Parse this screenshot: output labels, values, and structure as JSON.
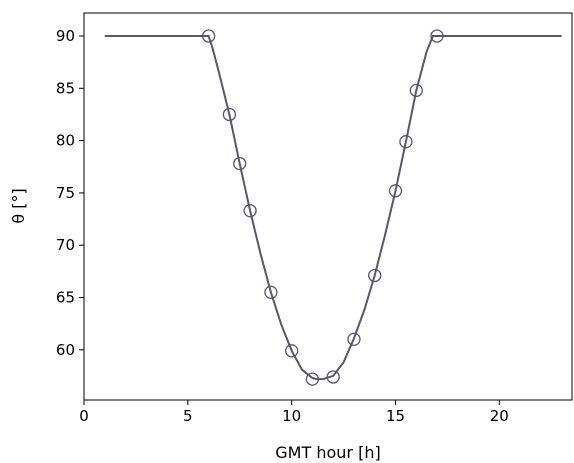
{
  "chart_data": {
    "type": "line",
    "xlabel": "GMT hour [h]",
    "ylabel": "θ [°]",
    "xlim": [
      0,
      23.5
    ],
    "ylim": [
      55.2,
      92.2
    ],
    "xticks": [
      0,
      5,
      10,
      15,
      20
    ],
    "yticks": [
      60,
      65,
      70,
      75,
      80,
      85,
      90
    ],
    "grid": false,
    "colors": {
      "line": "#56566e",
      "marker": "#56566e"
    },
    "series": [
      {
        "style": "line",
        "x": [
          1,
          6.0,
          6.2,
          6.5,
          7,
          7.5,
          8,
          8.5,
          9,
          9.5,
          10,
          10.5,
          11,
          11.2,
          11.5,
          12,
          12.5,
          13,
          13.5,
          14,
          14.5,
          15,
          15.5,
          16,
          16.5,
          16.8,
          17,
          23
        ],
        "y": [
          90,
          90,
          88.8,
          86.5,
          82.5,
          77.8,
          73.3,
          69.2,
          65.5,
          62.4,
          59.9,
          58.1,
          57.3,
          57.2,
          57.2,
          57.5,
          58.8,
          61.1,
          63.8,
          67.1,
          71.0,
          75.2,
          79.9,
          84.8,
          88.5,
          90,
          90,
          90
        ]
      },
      {
        "style": "markers",
        "marker": "open-circle",
        "x": [
          6,
          7,
          7.5,
          8,
          9,
          10,
          11,
          12,
          13,
          14,
          15,
          15.5,
          16,
          17
        ],
        "y": [
          90,
          82.5,
          77.8,
          73.3,
          65.5,
          59.9,
          57.2,
          57.4,
          61.0,
          67.1,
          75.2,
          79.9,
          84.8,
          90
        ]
      }
    ]
  }
}
